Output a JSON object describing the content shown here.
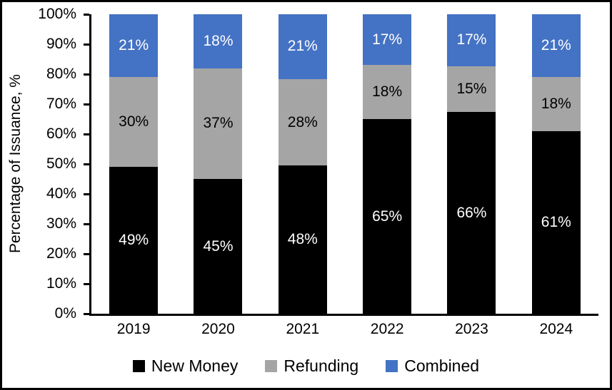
{
  "chart_data": {
    "type": "bar",
    "stacked": true,
    "title": "",
    "xlabel": "",
    "ylabel": "Percentage of Issuance, %",
    "categories": [
      "2019",
      "2020",
      "2021",
      "2022",
      "2023",
      "2024"
    ],
    "series": [
      {
        "name": "New Money",
        "color": "#000000",
        "label_color": "#ffffff",
        "values": [
          49,
          45,
          48,
          65,
          66,
          61
        ]
      },
      {
        "name": "Refunding",
        "color": "#A5A5A5",
        "label_color": "#000000",
        "values": [
          30,
          37,
          28,
          18,
          15,
          18
        ]
      },
      {
        "name": "Combined",
        "color": "#4472C4",
        "label_color": "#ffffff",
        "values": [
          21,
          18,
          21,
          17,
          17,
          21
        ]
      }
    ],
    "ylim": [
      0,
      100
    ],
    "y_ticks": [
      "0%",
      "10%",
      "20%",
      "30%",
      "40%",
      "50%",
      "60%",
      "70%",
      "80%",
      "90%",
      "100%"
    ],
    "value_suffix": "%",
    "grid": false,
    "legend_position": "bottom",
    "frame_border_color": "#000000",
    "axis_color": "#000000"
  }
}
